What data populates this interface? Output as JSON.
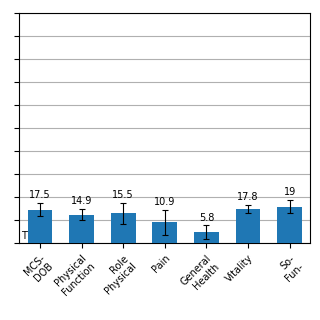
{
  "chart_data": {
    "type": "bar",
    "categories": [
      "MCS-\nDOB",
      "Physical\nFunction",
      "Role\nPhysical",
      "Pain",
      "General\nHealth",
      "Vitality",
      "So-\nFun-"
    ],
    "values": [
      17.5,
      14.9,
      15.5,
      10.9,
      5.8,
      17.8,
      19.0
    ],
    "value_labels": [
      "17.5",
      "14.9",
      "15.5",
      "10.9",
      "5.8",
      "17.8",
      "19"
    ],
    "errors": [
      3.5,
      3.0,
      5.5,
      6.5,
      3.5,
      2.0,
      3.5
    ],
    "data_labels": true,
    "annotations": [
      "T"
    ],
    "ylim": [
      0,
      120
    ],
    "yticks": [
      0,
      12,
      24,
      36,
      48,
      60,
      72,
      84,
      96,
      108,
      120
    ],
    "grid": true,
    "tick_labels": "x"
  }
}
